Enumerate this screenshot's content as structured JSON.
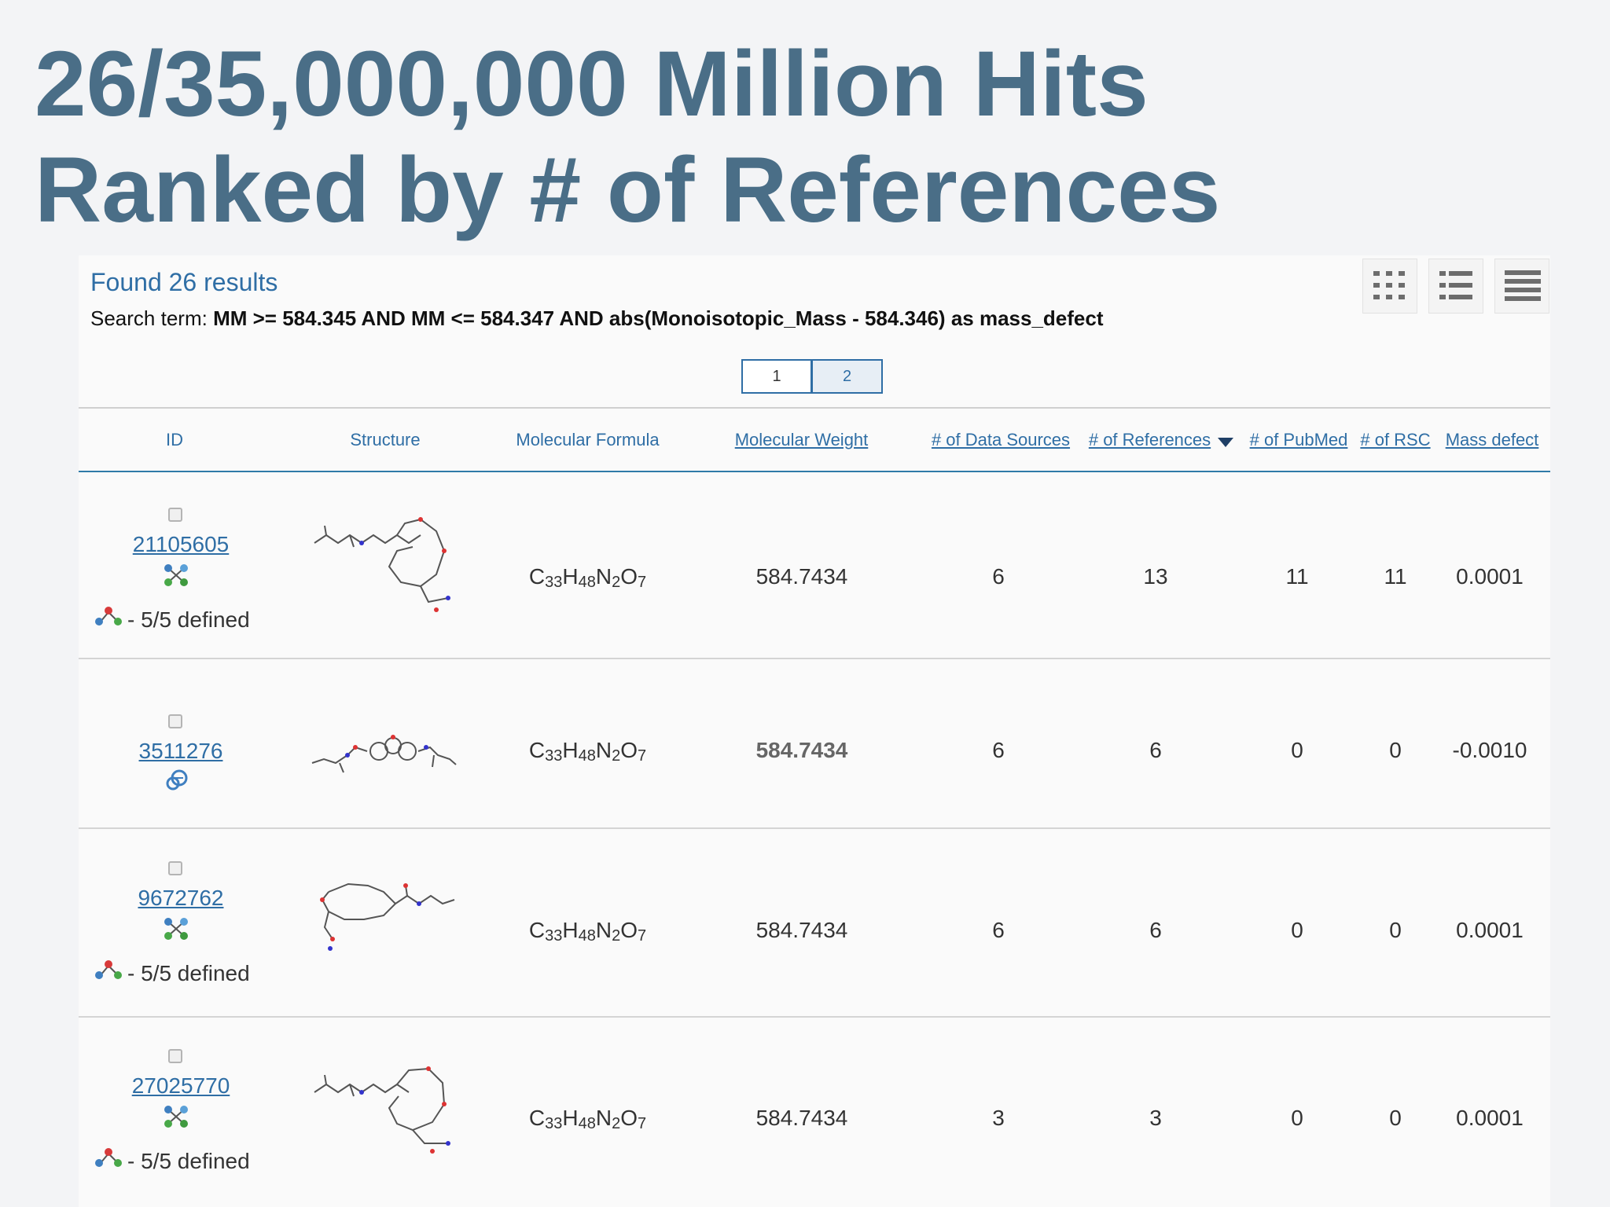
{
  "title": {
    "line1": "26/35,000,000 Million Hits",
    "line2": "Ranked by # of References"
  },
  "results": {
    "found": "Found 26 results",
    "search_label": "Search term:",
    "search_term": "MM >= 584.345 AND MM <= 584.347 AND abs(Monoisotopic_Mass - 584.346) as mass_defect"
  },
  "view_buttons": [
    "thumbnail-view-icon",
    "list-view-icon",
    "compact-view-icon"
  ],
  "pager": {
    "pages": [
      "1",
      "2"
    ],
    "active": "1"
  },
  "columns": {
    "id": "ID",
    "structure": "Structure",
    "formula": "Molecular Formula",
    "weight": "Molecular Weight",
    "sources": "# of Data Sources",
    "references": "# of References",
    "pubmed": "# of PubMed",
    "rsc": "# of RSC",
    "mass_defect": "Mass defect"
  },
  "rows": [
    {
      "id": "21105605",
      "formula": "C33H48N2O7",
      "weight": "584.7434",
      "sources": "6",
      "references": "13",
      "pubmed": "11",
      "rsc": "11",
      "mass_defect": "0.0001",
      "stereo": "- 5/5 defined",
      "id_icon": "compound-3d-icon"
    },
    {
      "id": "3511276",
      "formula": "C33H48N2O7",
      "weight": "584.7434",
      "sources": "6",
      "references": "6",
      "pubmed": "0",
      "rsc": "0",
      "mass_defect": "-0.0010",
      "stereo": "",
      "id_icon": "compound-2d-icon"
    },
    {
      "id": "9672762",
      "formula": "C33H48N2O7",
      "weight": "584.7434",
      "sources": "6",
      "references": "6",
      "pubmed": "0",
      "rsc": "0",
      "mass_defect": "0.0001",
      "stereo": "- 5/5 defined",
      "id_icon": "compound-3d-icon"
    },
    {
      "id": "27025770",
      "formula": "C33H48N2O7",
      "weight": "584.7434",
      "sources": "3",
      "references": "3",
      "pubmed": "0",
      "rsc": "0",
      "mass_defect": "0.0001",
      "stereo": "- 5/5 defined",
      "id_icon": "compound-3d-icon"
    }
  ]
}
